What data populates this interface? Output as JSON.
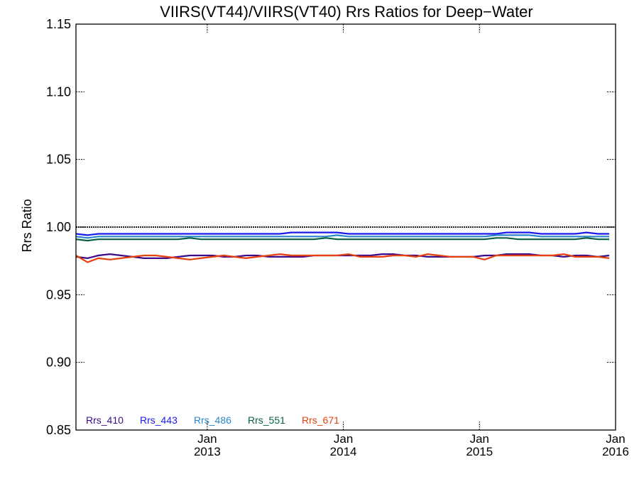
{
  "chart_data": {
    "type": "line",
    "title": "VIIRS(VT44)/VIIRS(VT40)  Rrs Ratios for Deep−Water",
    "xlabel": "",
    "ylabel": "Rrs Ratio",
    "ylim": [
      0.85,
      1.15
    ],
    "yticks": [
      0.85,
      0.9,
      0.95,
      1.0,
      1.05,
      1.1,
      1.15
    ],
    "ytick_labels": [
      "0.85",
      "0.90",
      "0.95",
      "1.00",
      "1.05",
      "1.10",
      "1.15"
    ],
    "xlim": [
      "2012-01-15",
      "2016-01-01"
    ],
    "xticks": [
      {
        "date": "2013-01-01",
        "month": "Jan",
        "year": "2013"
      },
      {
        "date": "2014-01-01",
        "month": "Jan",
        "year": "2014"
      },
      {
        "date": "2015-01-01",
        "month": "Jan",
        "year": "2015"
      },
      {
        "date": "2016-01-01",
        "month": "Jan",
        "year": "2016"
      }
    ],
    "reference_line": 1.0,
    "legend_position": "bottom-left",
    "x": [
      "2012-01-15",
      "2012-02-15",
      "2012-03-15",
      "2012-04-15",
      "2012-05-15",
      "2012-06-15",
      "2012-07-15",
      "2012-08-15",
      "2012-09-15",
      "2012-10-15",
      "2012-11-15",
      "2012-12-15",
      "2013-01-15",
      "2013-02-15",
      "2013-03-15",
      "2013-04-15",
      "2013-05-15",
      "2013-06-15",
      "2013-07-15",
      "2013-08-15",
      "2013-09-15",
      "2013-10-15",
      "2013-11-15",
      "2013-12-15",
      "2014-01-15",
      "2014-02-15",
      "2014-03-15",
      "2014-04-15",
      "2014-05-15",
      "2014-06-15",
      "2014-07-15",
      "2014-08-15",
      "2014-09-15",
      "2014-10-15",
      "2014-11-15",
      "2014-12-15",
      "2015-01-15",
      "2015-02-15",
      "2015-03-15",
      "2015-04-15",
      "2015-05-15",
      "2015-06-15",
      "2015-07-15",
      "2015-08-15",
      "2015-09-15",
      "2015-10-15",
      "2015-11-15",
      "2015-12-15"
    ],
    "series": [
      {
        "name": "Rrs_410",
        "color": "#3a0a8a",
        "values": [
          0.978,
          0.977,
          0.979,
          0.98,
          0.979,
          0.978,
          0.977,
          0.977,
          0.977,
          0.978,
          0.979,
          0.979,
          0.979,
          0.978,
          0.978,
          0.979,
          0.979,
          0.978,
          0.978,
          0.978,
          0.978,
          0.979,
          0.979,
          0.979,
          0.979,
          0.979,
          0.979,
          0.98,
          0.98,
          0.979,
          0.979,
          0.978,
          0.978,
          0.978,
          0.978,
          0.978,
          0.979,
          0.979,
          0.98,
          0.98,
          0.98,
          0.979,
          0.979,
          0.978,
          0.979,
          0.979,
          0.978,
          0.979
        ]
      },
      {
        "name": "Rrs_443",
        "color": "#1a1aee",
        "values": [
          0.995,
          0.994,
          0.995,
          0.995,
          0.995,
          0.995,
          0.995,
          0.995,
          0.995,
          0.995,
          0.995,
          0.995,
          0.995,
          0.995,
          0.995,
          0.995,
          0.995,
          0.995,
          0.995,
          0.996,
          0.996,
          0.996,
          0.996,
          0.996,
          0.995,
          0.995,
          0.995,
          0.995,
          0.995,
          0.995,
          0.995,
          0.995,
          0.995,
          0.995,
          0.995,
          0.995,
          0.995,
          0.995,
          0.996,
          0.996,
          0.996,
          0.995,
          0.995,
          0.995,
          0.995,
          0.996,
          0.995,
          0.995
        ]
      },
      {
        "name": "Rrs_486",
        "color": "#2b86c9",
        "values": [
          0.993,
          0.992,
          0.993,
          0.993,
          0.993,
          0.993,
          0.993,
          0.993,
          0.993,
          0.993,
          0.993,
          0.993,
          0.993,
          0.993,
          0.993,
          0.993,
          0.993,
          0.993,
          0.993,
          0.993,
          0.993,
          0.993,
          0.993,
          0.994,
          0.993,
          0.993,
          0.993,
          0.993,
          0.993,
          0.993,
          0.993,
          0.993,
          0.993,
          0.993,
          0.993,
          0.993,
          0.993,
          0.994,
          0.994,
          0.994,
          0.994,
          0.993,
          0.993,
          0.993,
          0.993,
          0.993,
          0.993,
          0.993
        ]
      },
      {
        "name": "Rrs_551",
        "color": "#0b6040",
        "values": [
          0.991,
          0.99,
          0.991,
          0.991,
          0.991,
          0.991,
          0.991,
          0.991,
          0.991,
          0.991,
          0.992,
          0.991,
          0.991,
          0.991,
          0.991,
          0.991,
          0.991,
          0.991,
          0.991,
          0.991,
          0.991,
          0.991,
          0.992,
          0.991,
          0.991,
          0.991,
          0.991,
          0.991,
          0.991,
          0.991,
          0.991,
          0.991,
          0.991,
          0.991,
          0.991,
          0.991,
          0.991,
          0.992,
          0.992,
          0.991,
          0.991,
          0.991,
          0.991,
          0.991,
          0.991,
          0.992,
          0.991,
          0.991
        ]
      },
      {
        "name": "Rrs_671",
        "color": "#e8400a",
        "values": [
          0.979,
          0.974,
          0.977,
          0.976,
          0.977,
          0.978,
          0.979,
          0.979,
          0.978,
          0.977,
          0.976,
          0.977,
          0.978,
          0.979,
          0.978,
          0.977,
          0.978,
          0.979,
          0.98,
          0.979,
          0.979,
          0.979,
          0.979,
          0.979,
          0.98,
          0.978,
          0.978,
          0.978,
          0.979,
          0.979,
          0.978,
          0.98,
          0.979,
          0.978,
          0.978,
          0.978,
          0.976,
          0.979,
          0.979,
          0.979,
          0.979,
          0.979,
          0.979,
          0.98,
          0.978,
          0.978,
          0.978,
          0.977
        ]
      }
    ]
  }
}
